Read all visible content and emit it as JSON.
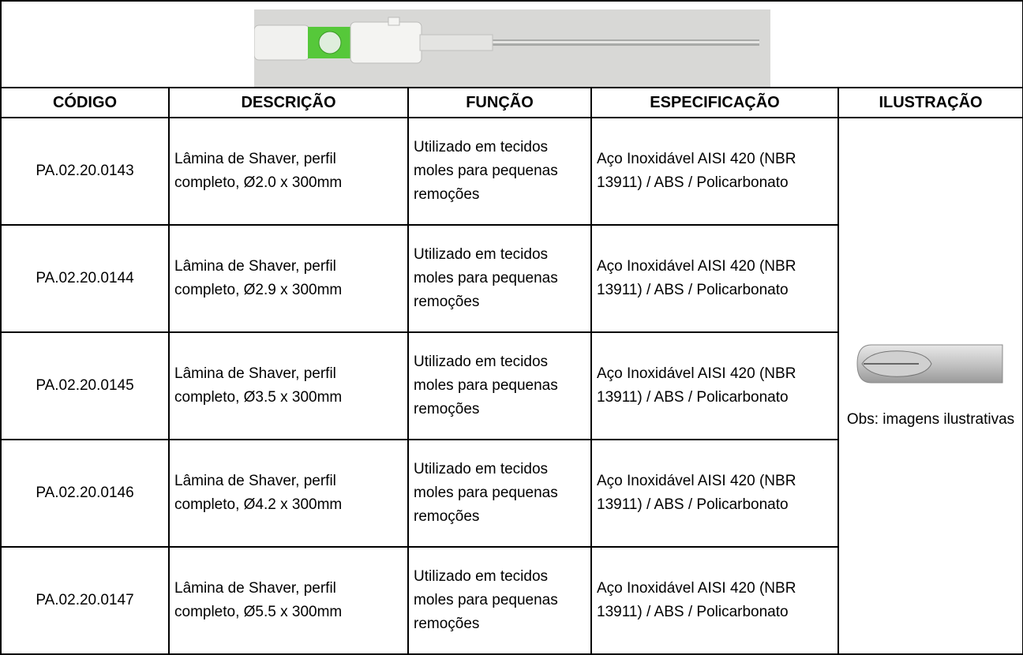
{
  "table": {
    "columns": [
      "CÓDIGO",
      "DESCRIÇÃO",
      "FUNÇÃO",
      "ESPECIFICAÇÃO",
      "ILUSTRAÇÃO"
    ],
    "rows": [
      [
        "PA.02.20.0143",
        "Lâmina de Shaver, perfil completo, Ø2.0 x 300mm",
        "Utilizado em tecidos moles para pequenas remoções",
        "Aço Inoxidável AISI 420 (NBR 13911) / ABS / Policarbonato"
      ],
      [
        "PA.02.20.0144",
        "Lâmina de Shaver, perfil completo, Ø2.9 x 300mm",
        "Utilizado em tecidos moles para pequenas remoções",
        "Aço Inoxidável AISI 420 (NBR 13911) / ABS / Policarbonato"
      ],
      [
        "PA.02.20.0145",
        "Lâmina de Shaver, perfil completo, Ø3.5 x 300mm",
        "Utilizado em tecidos moles para pequenas remoções",
        "Aço Inoxidável AISI 420 (NBR 13911) / ABS / Policarbonato"
      ],
      [
        "PA.02.20.0146",
        "Lâmina de Shaver, perfil completo, Ø4.2 x 300mm",
        "Utilizado em tecidos moles para pequenas remoções",
        "Aço Inoxidável AISI 420 (NBR 13911) / ABS / Policarbonato"
      ],
      [
        "PA.02.20.0147",
        "Lâmina de Shaver, perfil completo, Ø5.5 x 300mm",
        "Utilizado em tecidos moles para pequenas remoções",
        "Aço Inoxidável AISI 420 (NBR 13911) / ABS / Policarbonato"
      ]
    ],
    "illustration_note": "Obs: imagens ilustrativas"
  }
}
